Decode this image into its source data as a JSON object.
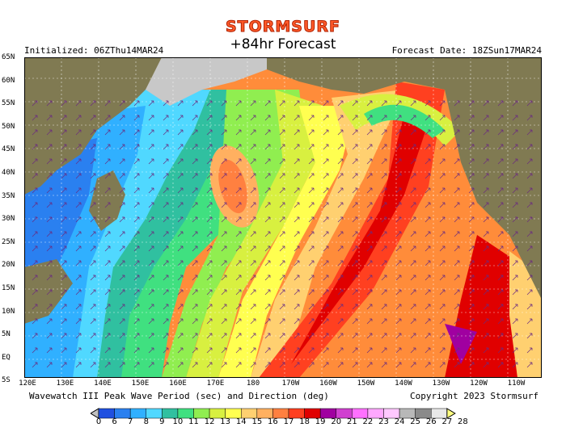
{
  "header": {
    "brand": "STORMSURF",
    "title": "+84hr Forecast",
    "initialized": "Initialized: 06ZThu14MAR24",
    "forecast_date": "Forecast Date: 18ZSun17MAR24"
  },
  "map": {
    "lat_labels": [
      "65N",
      "60N",
      "55N",
      "50N",
      "45N",
      "40N",
      "35N",
      "30N",
      "25N",
      "20N",
      "15N",
      "10N",
      "5N",
      "EQ",
      "5S"
    ],
    "lon_labels": [
      "120E",
      "130E",
      "140E",
      "150E",
      "160E",
      "170E",
      "180",
      "170W",
      "160W",
      "150W",
      "140W",
      "130W",
      "120W",
      "110W"
    ],
    "land_color": "#807a52",
    "ice_color": "#c8c8c8",
    "grid_color": "#ffffff"
  },
  "footer": {
    "product": "Wavewatch III Peak Wave Period (sec) and Direction (deg)",
    "copyright": "Copyright 2023 Stormsurf"
  },
  "colorbar": {
    "values": [
      "0",
      "6",
      "7",
      "8",
      "9",
      "10",
      "11",
      "12",
      "13",
      "14",
      "15",
      "16",
      "17",
      "18",
      "19",
      "20",
      "21",
      "22",
      "23",
      "24",
      "25",
      "26",
      "27",
      "28"
    ],
    "colors": [
      "#2020d0",
      "#2050e0",
      "#2a80f0",
      "#30b0ff",
      "#50d8ff",
      "#30c0a0",
      "#40e080",
      "#90ee50",
      "#d8f040",
      "#ffff50",
      "#ffd070",
      "#ffb060",
      "#ff8040",
      "#ff4020",
      "#e00000",
      "#a000a0",
      "#d040d0",
      "#ff70ff",
      "#ffa8ff",
      "#ffc8ff",
      "#b8b8b8",
      "#8a8a8a",
      "#e8e8e8",
      "#ffff80"
    ]
  }
}
